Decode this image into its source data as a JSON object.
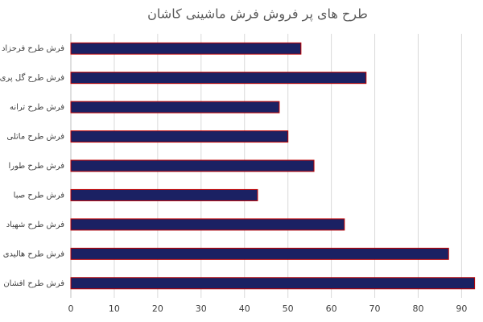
{
  "chart_data": {
    "type": "barh",
    "title": "طرح های پر فروش فرش ماشینی کاشان",
    "categories": [
      "فرش طرح فرحزاد",
      "فرش طرح گل پری",
      "فرش طرح ترانه",
      "فرش طرح ماتلی",
      "فرش طرح طورا",
      "فرش طرح صبا",
      "فرش طرح شهیاد",
      "فرش طرح هالیدی",
      "فرش طرح افشان"
    ],
    "values": [
      53,
      68,
      48,
      50,
      56,
      43,
      63,
      87,
      93
    ],
    "color": "#1b2163",
    "edge_color": "#c00000",
    "xlim": [
      0,
      94
    ],
    "xticks": [
      0,
      10,
      20,
      30,
      40,
      50,
      60,
      70,
      80,
      90
    ],
    "grid": true
  }
}
